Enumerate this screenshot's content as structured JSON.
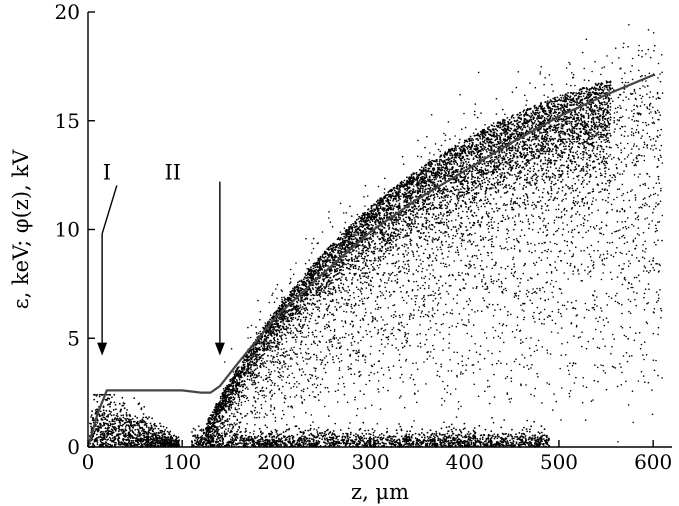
{
  "chart_data": {
    "type": "scatter",
    "title": "",
    "xlabel": "z, μm",
    "ylabel": "ε, keV; φ(z), kV",
    "xlim": [
      0,
      620
    ],
    "ylim": [
      0,
      20
    ],
    "x_ticks": [
      0,
      100,
      200,
      300,
      400,
      500,
      600
    ],
    "y_ticks": [
      0,
      5,
      10,
      15,
      20
    ],
    "grid": false,
    "legend": "none",
    "series": [
      {
        "kind": "line",
        "x": [
          0,
          10,
          20,
          60,
          100,
          120,
          130,
          140,
          160,
          200,
          250,
          300,
          350,
          400,
          450,
          500,
          550,
          600
        ],
        "y": [
          0.0,
          1.5,
          2.6,
          2.6,
          2.6,
          2.5,
          2.5,
          2.8,
          3.9,
          6.0,
          8.0,
          9.9,
          11.4,
          12.7,
          14.0,
          15.2,
          16.2,
          17.1
        ]
      },
      {
        "kind": "scatter-density",
        "description_points": [
          [
            50,
            2.2
          ],
          [
            150,
            4.5
          ],
          [
            200,
            8.0
          ],
          [
            300,
            12.0
          ],
          [
            400,
            15.0
          ],
          [
            500,
            17.5
          ],
          [
            600,
            19.5
          ]
        ]
      }
    ],
    "annotations": [
      {
        "label": "I",
        "text_x": 20,
        "text_y": 12.3,
        "arrow_from": [
          15,
          9.8
        ],
        "arrow_to": [
          15,
          4.2
        ]
      },
      {
        "label": "II",
        "text_x": 90,
        "text_y": 12.3,
        "arrow_from": [
          140,
          12.2
        ],
        "arrow_to": [
          140,
          4.2
        ]
      }
    ]
  },
  "colors": {
    "axis": "#000000",
    "curve": "#444444",
    "dots": "#000000"
  }
}
